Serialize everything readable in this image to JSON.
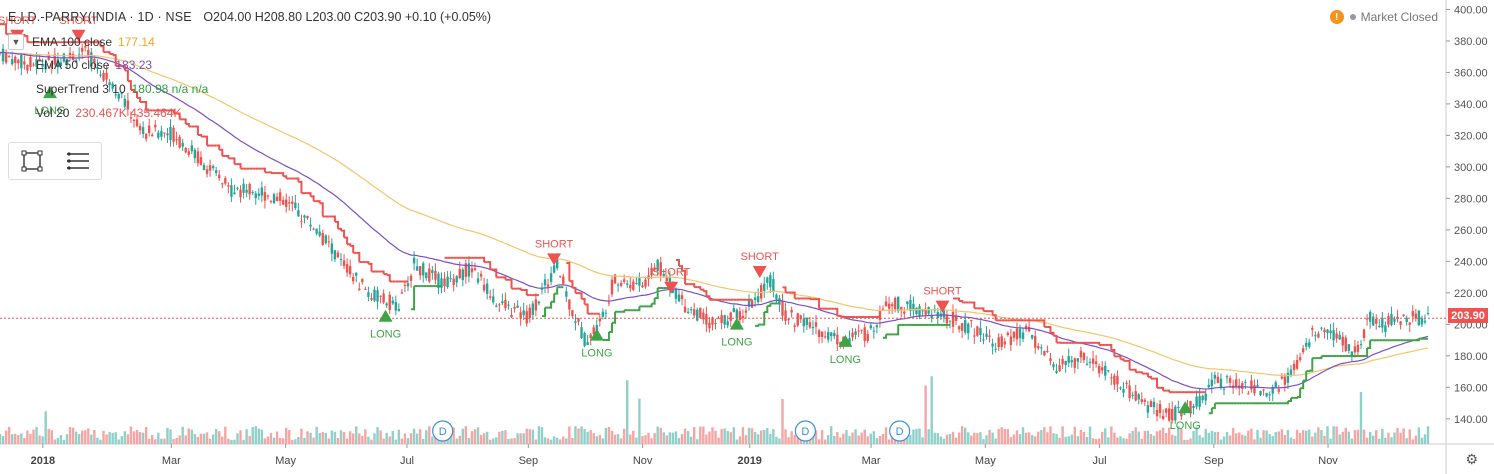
{
  "header": {
    "symbol": "E.I.D.-PARRY(INDIA · 1D · NSE",
    "ohlc": "O204.00  H208.80  L203.00  C203.90  +0.10 (+0.05%)"
  },
  "indicators": [
    {
      "name": "EMA 100 close",
      "value": "177.14",
      "color": "#f5a623"
    },
    {
      "name": "EMA 50 close",
      "value": "183.23",
      "color": "#7b4fc4"
    },
    {
      "name": "SuperTrend 3 10",
      "value": "180.98  n/a  n/a",
      "color": "#2e9e46"
    },
    {
      "name": "Vol 20",
      "value": "230.467K  435.464K",
      "color": "#ef5350"
    }
  ],
  "market_status": "Market Closed",
  "last_price": "203.90",
  "colors": {
    "up": "#26a69a",
    "down": "#ef5350",
    "ema100": "#f5c46a",
    "ema50": "#7b4fc4",
    "st_long": "#3fa446",
    "st_short": "#ef5350",
    "vol_up": "#8fd0c8",
    "vol_down": "#f4a6a4"
  },
  "chart_data": {
    "type": "candlestick",
    "y_axis_ticks": [
      "400.00",
      "380.00",
      "360.00",
      "340.00",
      "320.00",
      "300.00",
      "280.00",
      "260.00",
      "240.00",
      "220.00",
      "200.00",
      "180.00",
      "160.00",
      "140.00"
    ],
    "ylim": [
      124,
      406
    ],
    "x_axis_labels": [
      {
        "label": "2018",
        "bold": true,
        "t": 0.03
      },
      {
        "label": "Mar",
        "bold": false,
        "t": 0.12
      },
      {
        "label": "May",
        "bold": false,
        "t": 0.2
      },
      {
        "label": "Jul",
        "bold": false,
        "t": 0.285
      },
      {
        "label": "Sep",
        "bold": false,
        "t": 0.37
      },
      {
        "label": "Nov",
        "bold": false,
        "t": 0.45
      },
      {
        "label": "2019",
        "bold": true,
        "t": 0.525
      },
      {
        "label": "Mar",
        "bold": false,
        "t": 0.61
      },
      {
        "label": "May",
        "bold": false,
        "t": 0.69
      },
      {
        "label": "Jul",
        "bold": false,
        "t": 0.77
      },
      {
        "label": "Sep",
        "bold": false,
        "t": 0.85
      },
      {
        "label": "Nov",
        "bold": false,
        "t": 0.93
      }
    ],
    "price_path": [
      [
        0,
        372
      ],
      [
        0.02,
        365
      ],
      [
        0.04,
        368
      ],
      [
        0.06,
        372
      ],
      [
        0.08,
        352
      ],
      [
        0.1,
        322
      ],
      [
        0.12,
        322
      ],
      [
        0.14,
        305
      ],
      [
        0.16,
        286
      ],
      [
        0.18,
        285
      ],
      [
        0.2,
        278
      ],
      [
        0.22,
        262
      ],
      [
        0.24,
        238
      ],
      [
        0.26,
        218
      ],
      [
        0.28,
        212
      ],
      [
        0.29,
        238
      ],
      [
        0.31,
        226
      ],
      [
        0.33,
        236
      ],
      [
        0.35,
        212
      ],
      [
        0.37,
        205
      ],
      [
        0.39,
        238
      ],
      [
        0.4,
        210
      ],
      [
        0.41,
        190
      ],
      [
        0.42,
        200
      ],
      [
        0.43,
        228
      ],
      [
        0.45,
        225
      ],
      [
        0.46,
        238
      ],
      [
        0.48,
        212
      ],
      [
        0.5,
        200
      ],
      [
        0.52,
        208
      ],
      [
        0.54,
        228
      ],
      [
        0.55,
        206
      ],
      [
        0.57,
        198
      ],
      [
        0.59,
        190
      ],
      [
        0.61,
        195
      ],
      [
        0.62,
        215
      ],
      [
        0.64,
        210
      ],
      [
        0.66,
        206
      ],
      [
        0.68,
        198
      ],
      [
        0.7,
        188
      ],
      [
        0.72,
        195
      ],
      [
        0.74,
        172
      ],
      [
        0.76,
        180
      ],
      [
        0.78,
        165
      ],
      [
        0.8,
        150
      ],
      [
        0.82,
        142
      ],
      [
        0.84,
        150
      ],
      [
        0.85,
        165
      ],
      [
        0.87,
        160
      ],
      [
        0.89,
        158
      ],
      [
        0.9,
        165
      ],
      [
        0.91,
        175
      ],
      [
        0.92,
        195
      ],
      [
        0.94,
        190
      ],
      [
        0.95,
        182
      ],
      [
        0.96,
        205
      ],
      [
        0.97,
        200
      ],
      [
        0.98,
        204
      ]
    ],
    "signals": [
      {
        "label": "SHORT",
        "t": 0.012,
        "price": 382,
        "type": "short"
      },
      {
        "label": "SHORT",
        "t": 0.055,
        "price": 382,
        "type": "short"
      },
      {
        "label": "LONG",
        "t": 0.035,
        "price": 350,
        "type": "long"
      },
      {
        "label": "LONG",
        "t": 0.27,
        "price": 208,
        "type": "long"
      },
      {
        "label": "SHORT",
        "t": 0.388,
        "price": 240,
        "type": "short"
      },
      {
        "label": "LONG",
        "t": 0.418,
        "price": 196,
        "type": "long"
      },
      {
        "label": "SHORT",
        "t": 0.47,
        "price": 222,
        "type": "short"
      },
      {
        "label": "LONG",
        "t": 0.516,
        "price": 203,
        "type": "long"
      },
      {
        "label": "SHORT",
        "t": 0.532,
        "price": 232,
        "type": "short"
      },
      {
        "label": "LONG",
        "t": 0.592,
        "price": 192,
        "type": "long"
      },
      {
        "label": "SHORT",
        "t": 0.66,
        "price": 210,
        "type": "short"
      },
      {
        "label": "LONG",
        "t": 0.83,
        "price": 150,
        "type": "long"
      }
    ],
    "dividends": [
      {
        "label": "D",
        "t": 0.31
      },
      {
        "label": "D",
        "t": 0.564
      },
      {
        "label": "D",
        "t": 0.63
      }
    ]
  }
}
